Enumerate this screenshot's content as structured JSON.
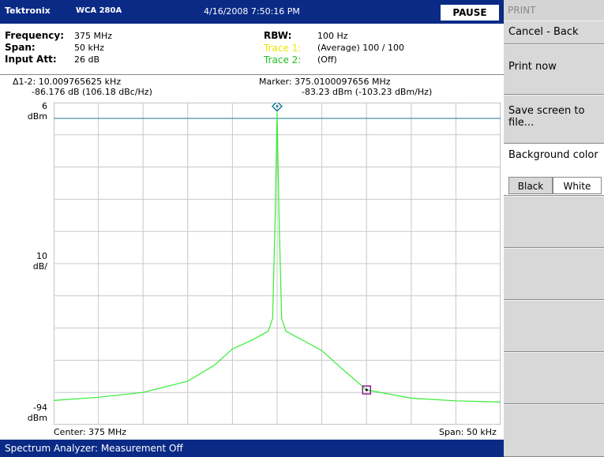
{
  "titlebar": {
    "brand": "Tektronix",
    "model": "WCA 280A",
    "datetime": "4/16/2008 7:50:16 PM",
    "pause": "PAUSE"
  },
  "settings": {
    "frequency_label": "Frequency:",
    "frequency_value": "375 MHz",
    "span_label": "Span:",
    "span_value": "50 kHz",
    "input_att_label": "Input Att:",
    "input_att_value": "26 dB",
    "rbw_label": "RBW:",
    "rbw_value": "100 Hz",
    "trace1_label": "Trace 1:",
    "trace1_value": "(Average)  100 / 100",
    "trace2_label": "Trace 2:",
    "trace2_value": "(Off)"
  },
  "readout": {
    "delta_line1": "Δ1-2: 10.009765625 kHz",
    "delta_line2": "-86.176 dB (106.18 dBc/Hz)",
    "marker_line1": "Marker: 375.0100097656 MHz",
    "marker_line2": "-83.23 dBm (-103.23 dBm/Hz)"
  },
  "axis": {
    "top_value": "6",
    "top_unit": "dBm",
    "mid_value": "10",
    "mid_unit": "dB/",
    "bottom_value": "-94",
    "bottom_unit": "dBm",
    "center": "Center: 375 MHz",
    "span": "Span: 50 kHz"
  },
  "chart_data": {
    "type": "line",
    "x_center_mhz": 375,
    "x_span_khz": 50,
    "ylim": [
      -94,
      6
    ],
    "y_div_db": 10,
    "grid": true,
    "reference_level_dbm": 6,
    "marker1": {
      "freq_offset_khz": 0,
      "level_dbm": 2.9
    },
    "marker2": {
      "freq_offset_khz": 10.01,
      "level_dbm": -83.23
    },
    "series": [
      {
        "color": "#33ee33",
        "x_khz": [
          -25,
          -20,
          -15,
          -10,
          -7,
          -5,
          -3,
          -2,
          -1,
          -0.5,
          -0.2,
          0,
          0.2,
          0.5,
          1,
          2,
          3,
          5,
          7,
          10,
          15,
          20,
          25
        ],
        "y_dbm": [
          -86.5,
          -85.5,
          -84,
          -80.5,
          -75.5,
          -70.5,
          -68,
          -66.5,
          -65,
          -61,
          -28,
          3,
          -28,
          -61,
          -65,
          -66.5,
          -68,
          -71,
          -76,
          -83.2,
          -85.8,
          -86.6,
          -87
        ]
      }
    ]
  },
  "status": {
    "text": "Spectrum Analyzer: Measurement Off"
  },
  "menu": {
    "title": "PRINT",
    "cancel_back": "Cancel - Back",
    "print_now": "Print now",
    "save_screen": "Save screen to file...",
    "background_color": "Background color",
    "black": "Black",
    "white": "White"
  }
}
